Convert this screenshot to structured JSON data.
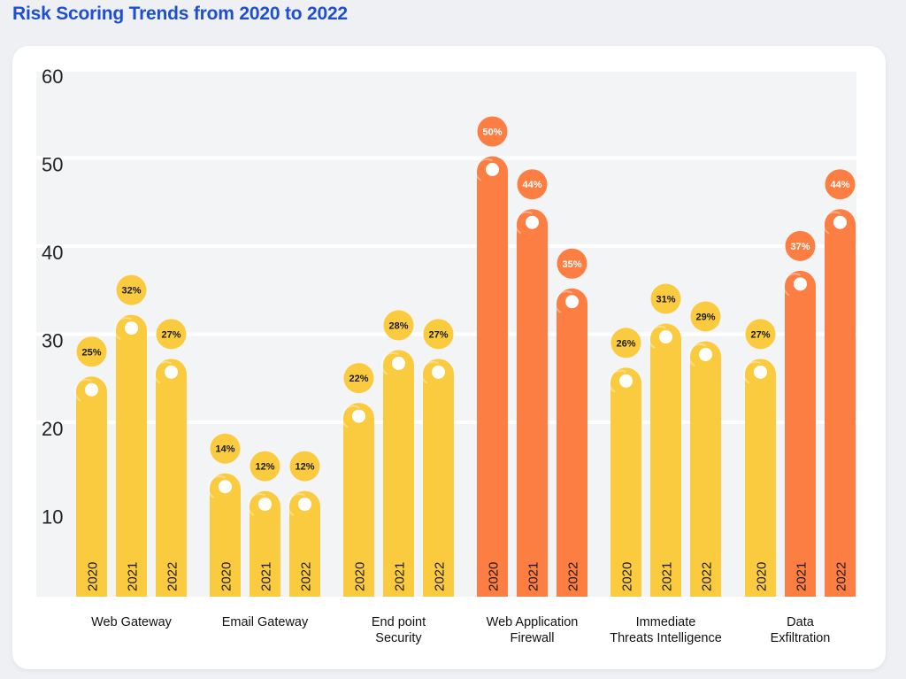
{
  "page_title": "Risk Scoring Trends from 2020 to 2022",
  "colors": {
    "title": "#1f4fd1",
    "yellow": "#fbcb3f",
    "orange": "#fd7e42",
    "band": "#f3f4f6",
    "background": "#eef0f4"
  },
  "chart_data": {
    "type": "bar",
    "title": "Risk Scoring Trends from 2020 to 2022",
    "xlabel": "",
    "ylabel": "",
    "ylim": [
      0,
      60
    ],
    "yticks": [
      10,
      20,
      30,
      40,
      50,
      60
    ],
    "groups": [
      {
        "label": "Web Gateway",
        "label_lines": [
          "Web Gateway"
        ],
        "color": "yellow",
        "bars": [
          {
            "year": "2020",
            "value": 25,
            "label": "25%"
          },
          {
            "year": "2021",
            "value": 32,
            "label": "32%"
          },
          {
            "year": "2022",
            "value": 27,
            "label": "27%"
          }
        ]
      },
      {
        "label": "Email Gateway",
        "label_lines": [
          "Email Gateway"
        ],
        "color": "yellow",
        "bars": [
          {
            "year": "2020",
            "value": 14,
            "label": "14%"
          },
          {
            "year": "2021",
            "value": 12,
            "label": "12%"
          },
          {
            "year": "2022",
            "value": 12,
            "label": "12%"
          }
        ]
      },
      {
        "label": "End point Security",
        "label_lines": [
          "End point",
          "Security"
        ],
        "color": "yellow",
        "bars": [
          {
            "year": "2020",
            "value": 22,
            "label": "22%"
          },
          {
            "year": "2021",
            "value": 28,
            "label": "28%"
          },
          {
            "year": "2022",
            "value": 27,
            "label": "27%"
          }
        ]
      },
      {
        "label": "Web Application Firewall",
        "label_lines": [
          "Web Application",
          "Firewall"
        ],
        "color": "orange",
        "bars": [
          {
            "year": "2020",
            "value": 50,
            "label": "50%"
          },
          {
            "year": "2021",
            "value": 44,
            "label": "44%"
          },
          {
            "year": "2022",
            "value": 35,
            "label": "35%"
          }
        ]
      },
      {
        "label": "Immediate Threats Intelligence",
        "label_lines": [
          "Immediate",
          "Threats Intelligence"
        ],
        "color": "yellow",
        "bars": [
          {
            "year": "2020",
            "value": 26,
            "label": "26%"
          },
          {
            "year": "2021",
            "value": 31,
            "label": "31%"
          },
          {
            "year": "2022",
            "value": 29,
            "label": "29%"
          }
        ]
      },
      {
        "label": "Data Exfiltration",
        "label_lines": [
          "Data",
          "Exfiltration"
        ],
        "color": "mixed",
        "bars": [
          {
            "year": "2020",
            "value": 27,
            "label": "27%",
            "color": "yellow"
          },
          {
            "year": "2021",
            "value": 37,
            "label": "37%",
            "color": "orange"
          },
          {
            "year": "2022",
            "value": 44,
            "label": "44%",
            "color": "orange"
          }
        ]
      }
    ]
  }
}
